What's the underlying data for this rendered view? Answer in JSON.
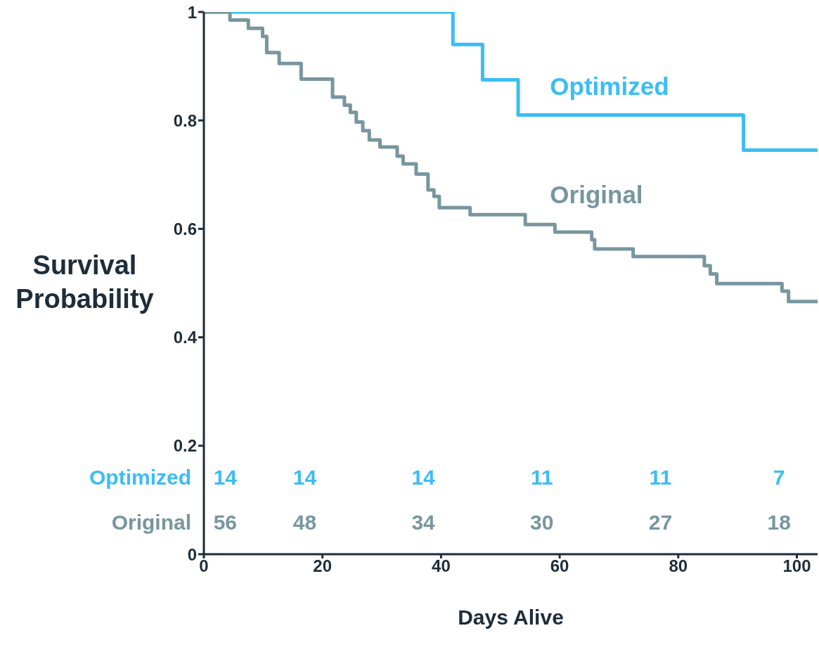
{
  "chart_data": {
    "type": "step",
    "xlabel": "Days Alive",
    "ylabel": "Survival Probability",
    "xlim": [
      0,
      103.5
    ],
    "xticks": [
      0,
      20,
      40,
      60,
      80,
      100
    ],
    "ylim": [
      0,
      1
    ],
    "yticks": [
      0,
      0.2,
      0.4,
      0.6,
      0.8,
      1
    ],
    "marker": "none",
    "line_style": "solid",
    "series": [
      {
        "name": "Optimized",
        "color": "#3bbdf5",
        "x": [
          0,
          42,
          47,
          53,
          91,
          103.5
        ],
        "values": [
          1,
          0.94,
          0.875,
          0.81,
          0.745,
          0.745
        ]
      },
      {
        "name": "Original",
        "color": "#78969e",
        "x": [
          0,
          4.4,
          7.5,
          9.9,
          10.6,
          12.7,
          16.4,
          21.7,
          23.7,
          24.7,
          25.7,
          26.8,
          27.9,
          29.7,
          32.6,
          33.6,
          35.8,
          37.8,
          38.8,
          39.7,
          44.9,
          54.2,
          59.2,
          65.4,
          65.9,
          72.4,
          84.4,
          85.4,
          86.5,
          97.5,
          98.6,
          103.5
        ],
        "values": [
          1,
          0.985,
          0.97,
          0.955,
          0.925,
          0.905,
          0.876,
          0.843,
          0.828,
          0.815,
          0.797,
          0.781,
          0.764,
          0.751,
          0.734,
          0.72,
          0.701,
          0.672,
          0.66,
          0.639,
          0.626,
          0.608,
          0.594,
          0.58,
          0.563,
          0.549,
          0.532,
          0.517,
          0.499,
          0.485,
          0.466,
          0.466
        ]
      }
    ],
    "annotations": [
      "Optimized",
      "14",
      "14",
      "14",
      "11",
      "11",
      "7",
      "Original",
      "56",
      "48",
      "34",
      "30",
      "27",
      "18"
    ]
  }
}
